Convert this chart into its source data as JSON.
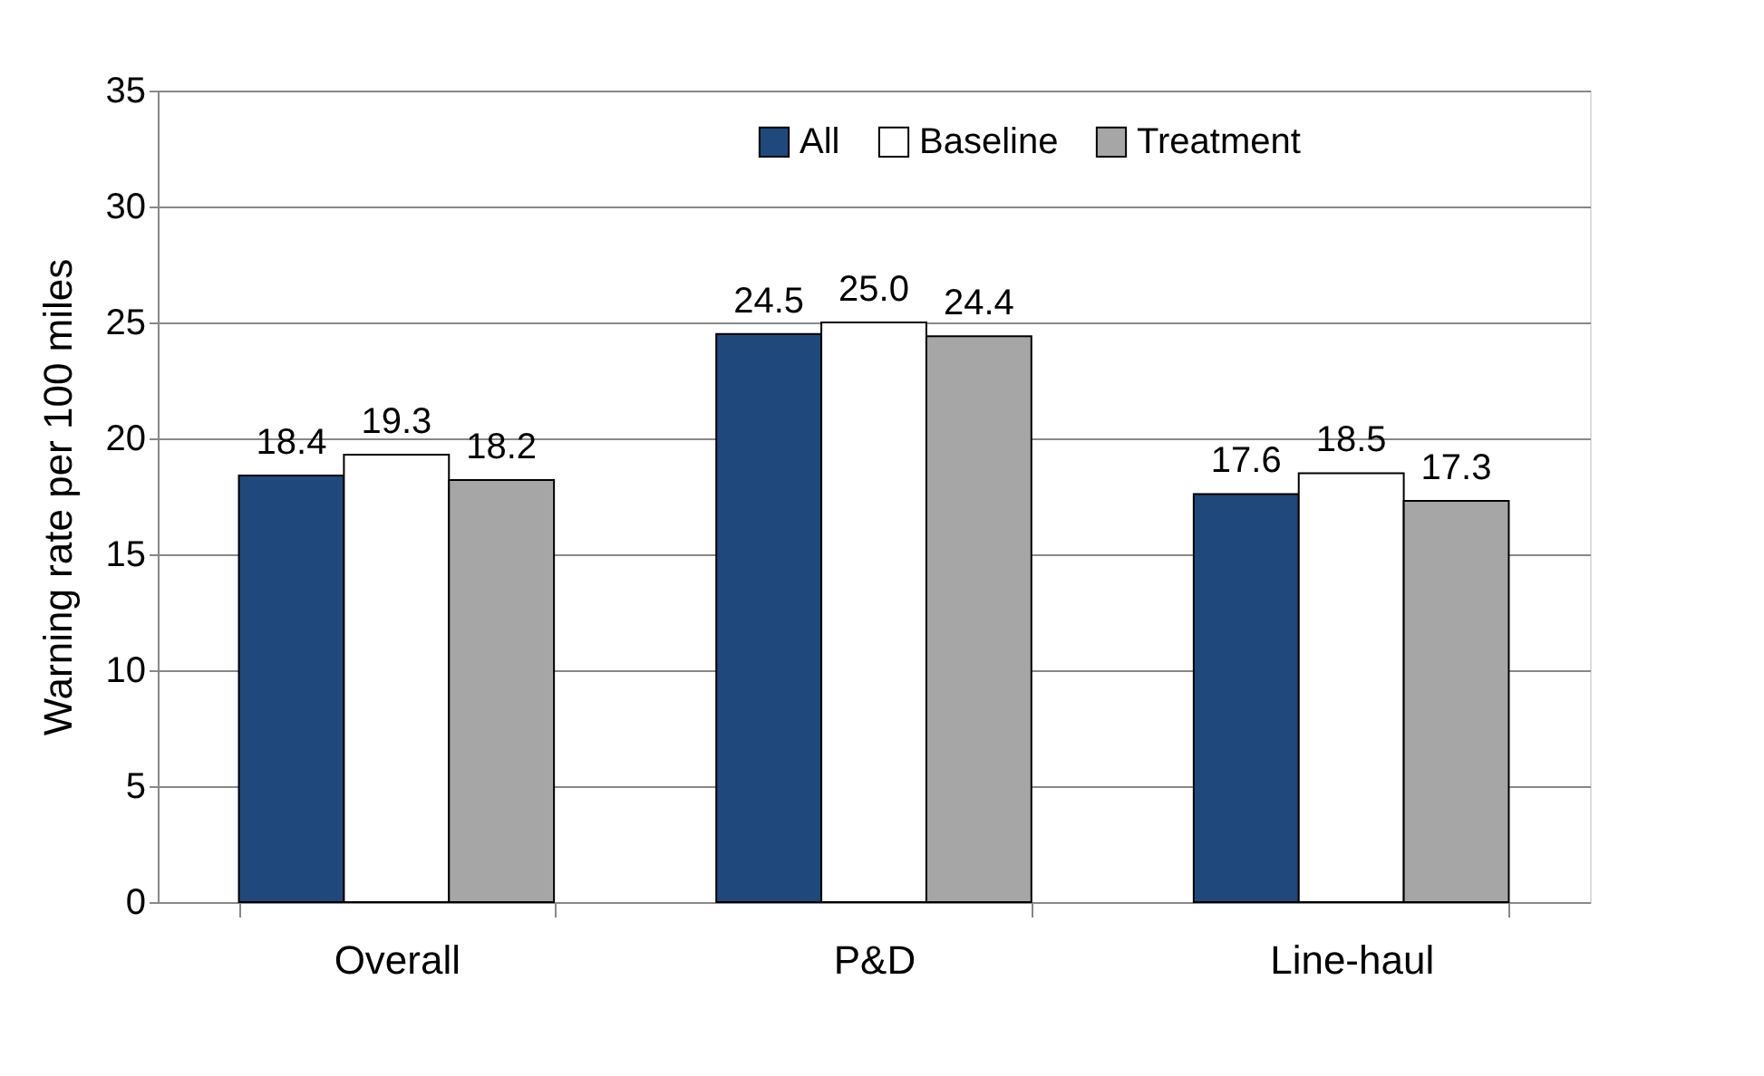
{
  "chart_data": {
    "type": "bar",
    "ylabel": "Warning rate per 100 miles",
    "categories": [
      "Overall",
      "P&D",
      "Line-haul"
    ],
    "series": [
      {
        "name": "All",
        "color": "#1f497d",
        "values": [
          18.4,
          24.5,
          17.6
        ],
        "value_labels": [
          "18.4",
          "24.5",
          "17.6"
        ]
      },
      {
        "name": "Baseline",
        "color": "#ffffff",
        "values": [
          19.3,
          25.0,
          18.5
        ],
        "value_labels": [
          "19.3",
          "25.0",
          "18.5"
        ]
      },
      {
        "name": "Treatment",
        "color": "#a6a6a6",
        "values": [
          18.2,
          24.4,
          17.3
        ],
        "value_labels": [
          "18.2",
          "24.4",
          "17.3"
        ]
      }
    ],
    "ylim": [
      0,
      35
    ],
    "yticks": [
      0,
      5,
      10,
      15,
      20,
      25,
      30,
      35
    ],
    "grid": "y",
    "legend": "top"
  }
}
